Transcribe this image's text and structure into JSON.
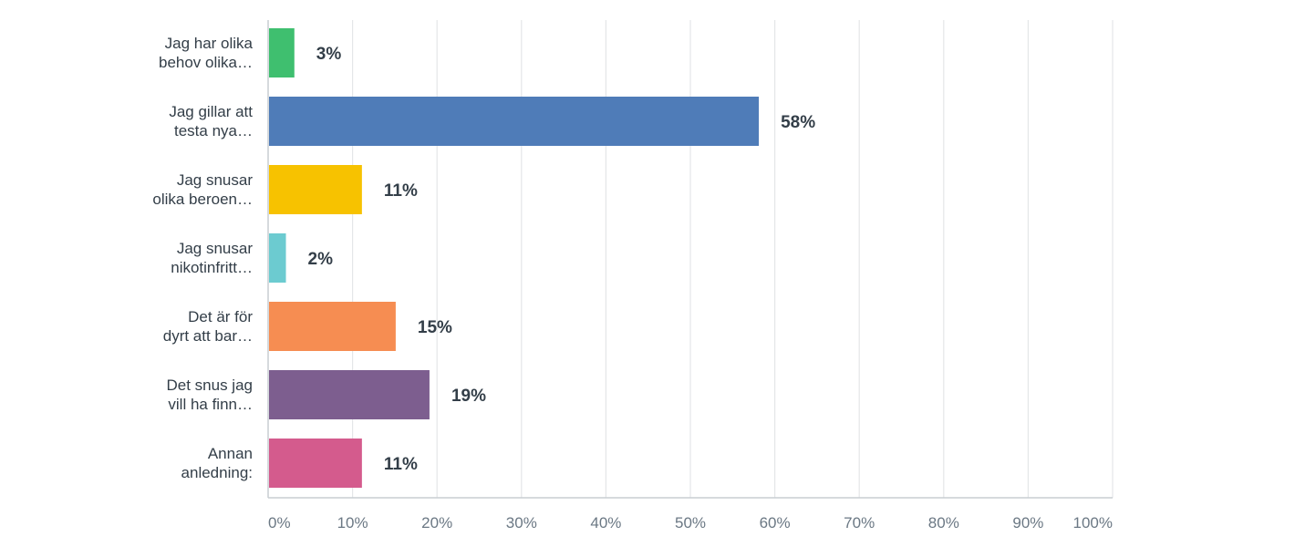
{
  "chart_data": {
    "type": "bar",
    "orientation": "horizontal",
    "categories": [
      [
        "Jag har olika",
        "behov olika…"
      ],
      [
        "Jag gillar att",
        "testa nya…"
      ],
      [
        "Jag snusar",
        "olika beroen…"
      ],
      [
        "Jag snusar",
        "nikotinfritt…"
      ],
      [
        "Det är för",
        "dyrt att bar…"
      ],
      [
        "Det snus jag",
        "vill ha finn…"
      ],
      [
        "Annan",
        "anledning:"
      ]
    ],
    "values": [
      3,
      58,
      11,
      2,
      15,
      19,
      11
    ],
    "value_labels": [
      "3%",
      "58%",
      "11%",
      "2%",
      "15%",
      "19%",
      "11%"
    ],
    "colors": [
      "#3fbf6f",
      "#4f7cb8",
      "#f7c200",
      "#6ccbd0",
      "#f68d52",
      "#7d5e8f",
      "#d45b8d"
    ],
    "xlim": [
      0,
      100
    ],
    "x_ticks": [
      0,
      10,
      20,
      30,
      40,
      50,
      60,
      70,
      80,
      90,
      100
    ],
    "x_tick_labels": [
      "0%",
      "10%",
      "20%",
      "30%",
      "40%",
      "50%",
      "60%",
      "70%",
      "80%",
      "90%",
      "100%"
    ],
    "grid": true,
    "title": "",
    "xlabel": "",
    "ylabel": ""
  }
}
